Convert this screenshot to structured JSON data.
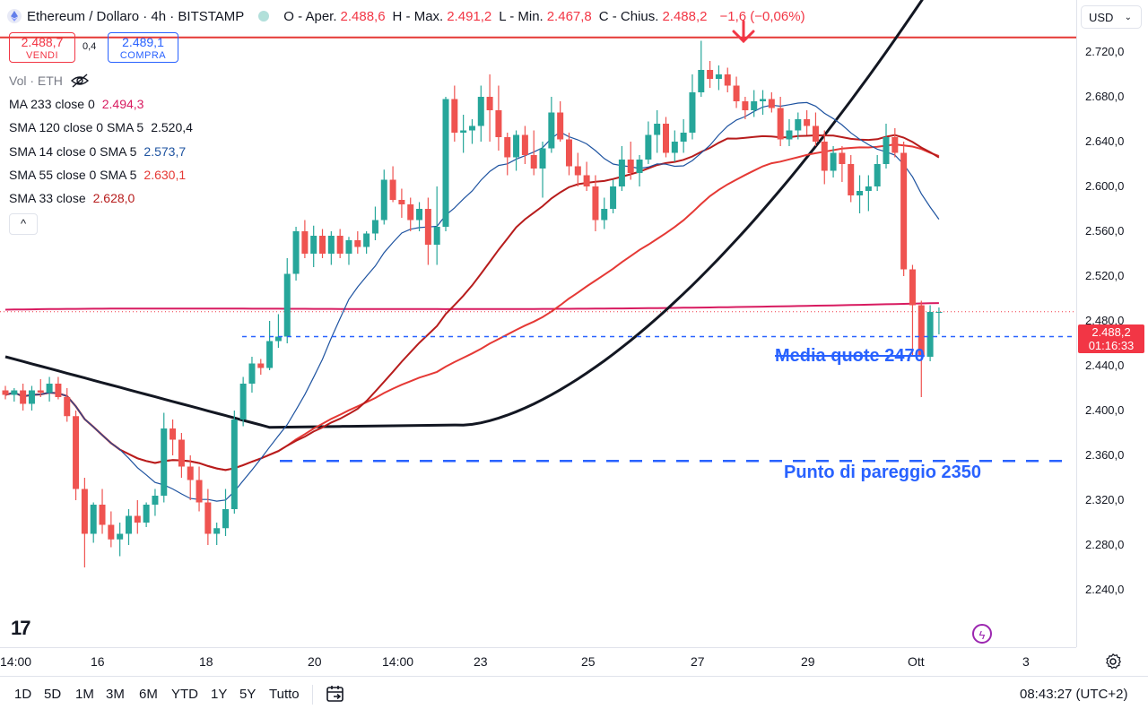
{
  "header": {
    "symbol_title": "Ethereum / Dollaro · 4h · BITSTAMP",
    "ohlc": [
      {
        "label": "O - Aper.",
        "value": "2.488,6"
      },
      {
        "label": "H - Max.",
        "value": "2.491,2"
      },
      {
        "label": "L - Min.",
        "value": "2.467,8"
      },
      {
        "label": "C - Chius.",
        "value": "2.488,2"
      }
    ],
    "change": "−1,6 (−0,06%)"
  },
  "trade": {
    "sell_price": "2.488,7",
    "sell_label": "VENDI",
    "spread": "0,4",
    "buy_price": "2.489,1",
    "buy_label": "COMPRA"
  },
  "indicators": {
    "vol_label": "Vol · ETH",
    "rows": [
      {
        "name": "MA 233 close 0",
        "value": "2.494,3",
        "color": "#d81b60"
      },
      {
        "name": "SMA 120 close 0 SMA 5",
        "value": "2.520,4",
        "color": "#131722"
      },
      {
        "name": "SMA 14 close 0 SMA 5",
        "value": "2.573,7",
        "color": "#1e53a0"
      },
      {
        "name": "SMA 55 close 0 SMA 5",
        "value": "2.630,1",
        "color": "#e53935"
      },
      {
        "name": "SMA 33 close",
        "value": "2.628,0",
        "color": "#b71c1c"
      }
    ],
    "collapse_symbol": "^"
  },
  "price_axis": {
    "currency": "USD",
    "ticks": [
      "2.720,0",
      "2.680,0",
      "2.640,0",
      "2.600,0",
      "2.560,0",
      "2.520,0",
      "2.480,0",
      "2.440,0",
      "2.400,0",
      "2.360,0",
      "2.320,0",
      "2.280,0",
      "2.240,0"
    ],
    "last_price": "2.488,2",
    "countdown": "01:16:33"
  },
  "time_axis": {
    "labels": [
      "14:00",
      "16",
      "18",
      "20",
      "14:00",
      "23",
      "25",
      "27",
      "29",
      "Ott",
      "3"
    ]
  },
  "annotations": {
    "media": "Media quote 2470",
    "pareggio": "Punto di pareggio 2350"
  },
  "bottom": {
    "timeframes": [
      "1D",
      "5D",
      "1M",
      "3M",
      "6M",
      "YTD",
      "1Y",
      "5Y",
      "Tutto"
    ],
    "clock": "08:43:27 (UTC+2)"
  },
  "colors": {
    "up": "#26a69a",
    "down": "#ef5350",
    "resistance": "#e53935",
    "annotation": "#2962ff"
  },
  "chart_data": {
    "type": "candlestick",
    "title": "Ethereum / Dollaro · 4h · BITSTAMP",
    "ylim": [
      2220,
      2750
    ],
    "y_ticks": [
      2720,
      2680,
      2640,
      2600,
      2560,
      2520,
      2480,
      2440,
      2400,
      2360,
      2320,
      2280,
      2240
    ],
    "resistance_level": 2733,
    "horizontal_levels": [
      {
        "label": "Media quote 2470",
        "value": 2466
      },
      {
        "label": "Punto di pareggio 2350",
        "value": 2355
      }
    ],
    "candles": [
      [
        2418,
        2422,
        2410,
        2414
      ],
      [
        2414,
        2420,
        2408,
        2418
      ],
      [
        2418,
        2424,
        2400,
        2406
      ],
      [
        2406,
        2422,
        2400,
        2418
      ],
      [
        2418,
        2428,
        2412,
        2416
      ],
      [
        2416,
        2430,
        2408,
        2424
      ],
      [
        2424,
        2430,
        2410,
        2412
      ],
      [
        2412,
        2420,
        2390,
        2395
      ],
      [
        2395,
        2400,
        2320,
        2330
      ],
      [
        2330,
        2340,
        2260,
        2290
      ],
      [
        2290,
        2318,
        2282,
        2316
      ],
      [
        2316,
        2330,
        2290,
        2298
      ],
      [
        2298,
        2310,
        2278,
        2285
      ],
      [
        2285,
        2300,
        2270,
        2290
      ],
      [
        2290,
        2312,
        2280,
        2306
      ],
      [
        2306,
        2320,
        2290,
        2300
      ],
      [
        2300,
        2318,
        2296,
        2316
      ],
      [
        2316,
        2330,
        2306,
        2324
      ],
      [
        2324,
        2398,
        2318,
        2384
      ],
      [
        2384,
        2392,
        2360,
        2374
      ],
      [
        2374,
        2380,
        2340,
        2350
      ],
      [
        2350,
        2360,
        2320,
        2338
      ],
      [
        2338,
        2350,
        2310,
        2318
      ],
      [
        2318,
        2330,
        2280,
        2290
      ],
      [
        2290,
        2300,
        2280,
        2295
      ],
      [
        2295,
        2330,
        2288,
        2312
      ],
      [
        2312,
        2400,
        2308,
        2392
      ],
      [
        2392,
        2430,
        2386,
        2424
      ],
      [
        2424,
        2448,
        2416,
        2442
      ],
      [
        2442,
        2446,
        2432,
        2438
      ],
      [
        2438,
        2480,
        2436,
        2462
      ],
      [
        2462,
        2486,
        2456,
        2466
      ],
      [
        2466,
        2536,
        2460,
        2522
      ],
      [
        2522,
        2564,
        2516,
        2560
      ],
      [
        2560,
        2570,
        2536,
        2540
      ],
      [
        2540,
        2565,
        2528,
        2556
      ],
      [
        2556,
        2562,
        2536,
        2540
      ],
      [
        2540,
        2560,
        2530,
        2556
      ],
      [
        2556,
        2562,
        2536,
        2540
      ],
      [
        2540,
        2555,
        2530,
        2552
      ],
      [
        2552,
        2560,
        2540,
        2546
      ],
      [
        2546,
        2560,
        2540,
        2558
      ],
      [
        2558,
        2582,
        2552,
        2570
      ],
      [
        2570,
        2615,
        2566,
        2606
      ],
      [
        2606,
        2618,
        2586,
        2588
      ],
      [
        2588,
        2598,
        2572,
        2584
      ],
      [
        2584,
        2590,
        2560,
        2570
      ],
      [
        2570,
        2586,
        2560,
        2580
      ],
      [
        2580,
        2590,
        2530,
        2548
      ],
      [
        2548,
        2600,
        2530,
        2564
      ],
      [
        2564,
        2680,
        2560,
        2678
      ],
      [
        2678,
        2690,
        2640,
        2648
      ],
      [
        2648,
        2664,
        2630,
        2650
      ],
      [
        2650,
        2660,
        2638,
        2654
      ],
      [
        2654,
        2690,
        2640,
        2680
      ],
      [
        2680,
        2700,
        2640,
        2668
      ],
      [
        2668,
        2690,
        2632,
        2644
      ],
      [
        2644,
        2648,
        2610,
        2626
      ],
      [
        2626,
        2650,
        2614,
        2646
      ],
      [
        2646,
        2654,
        2620,
        2628
      ],
      [
        2628,
        2650,
        2610,
        2616
      ],
      [
        2616,
        2640,
        2590,
        2634
      ],
      [
        2634,
        2680,
        2630,
        2666
      ],
      [
        2666,
        2676,
        2640,
        2642
      ],
      [
        2642,
        2648,
        2610,
        2618
      ],
      [
        2618,
        2630,
        2600,
        2610
      ],
      [
        2610,
        2622,
        2596,
        2600
      ],
      [
        2600,
        2610,
        2560,
        2570
      ],
      [
        2570,
        2590,
        2562,
        2580
      ],
      [
        2580,
        2606,
        2576,
        2600
      ],
      [
        2600,
        2636,
        2596,
        2624
      ],
      [
        2624,
        2640,
        2606,
        2612
      ],
      [
        2612,
        2628,
        2600,
        2624
      ],
      [
        2624,
        2658,
        2620,
        2646
      ],
      [
        2646,
        2668,
        2630,
        2656
      ],
      [
        2656,
        2662,
        2626,
        2630
      ],
      [
        2630,
        2650,
        2622,
        2640
      ],
      [
        2640,
        2660,
        2630,
        2648
      ],
      [
        2648,
        2700,
        2642,
        2684
      ],
      [
        2684,
        2730,
        2680,
        2704
      ],
      [
        2704,
        2712,
        2688,
        2696
      ],
      [
        2696,
        2708,
        2686,
        2700
      ],
      [
        2700,
        2706,
        2684,
        2690
      ],
      [
        2690,
        2698,
        2670,
        2676
      ],
      [
        2676,
        2680,
        2660,
        2668
      ],
      [
        2668,
        2686,
        2662,
        2676
      ],
      [
        2676,
        2686,
        2664,
        2678
      ],
      [
        2678,
        2684,
        2666,
        2670
      ],
      [
        2670,
        2680,
        2636,
        2642
      ],
      [
        2642,
        2660,
        2636,
        2650
      ],
      [
        2650,
        2666,
        2642,
        2660
      ],
      [
        2660,
        2668,
        2646,
        2654
      ],
      [
        2654,
        2666,
        2636,
        2640
      ],
      [
        2640,
        2650,
        2602,
        2614
      ],
      [
        2614,
        2636,
        2608,
        2630
      ],
      [
        2630,
        2636,
        2604,
        2620
      ],
      [
        2620,
        2628,
        2586,
        2592
      ],
      [
        2592,
        2610,
        2576,
        2596
      ],
      [
        2596,
        2610,
        2578,
        2600
      ],
      [
        2600,
        2628,
        2596,
        2620
      ],
      [
        2620,
        2656,
        2616,
        2644
      ],
      [
        2644,
        2652,
        2626,
        2630
      ],
      [
        2630,
        2640,
        2520,
        2526
      ],
      [
        2526,
        2530,
        2448,
        2494
      ],
      [
        2494,
        2498,
        2412,
        2448
      ],
      [
        2448,
        2494,
        2444,
        2488
      ],
      [
        2488,
        2492,
        2468,
        2488
      ]
    ],
    "series": [
      {
        "name": "SMA 14",
        "color": "#1e53a0"
      },
      {
        "name": "SMA 33",
        "color": "#b71c1c"
      },
      {
        "name": "SMA 55",
        "color": "#e53935"
      },
      {
        "name": "SMA 120",
        "color": "#131722"
      },
      {
        "name": "MA 233",
        "color": "#d81b60"
      }
    ]
  }
}
